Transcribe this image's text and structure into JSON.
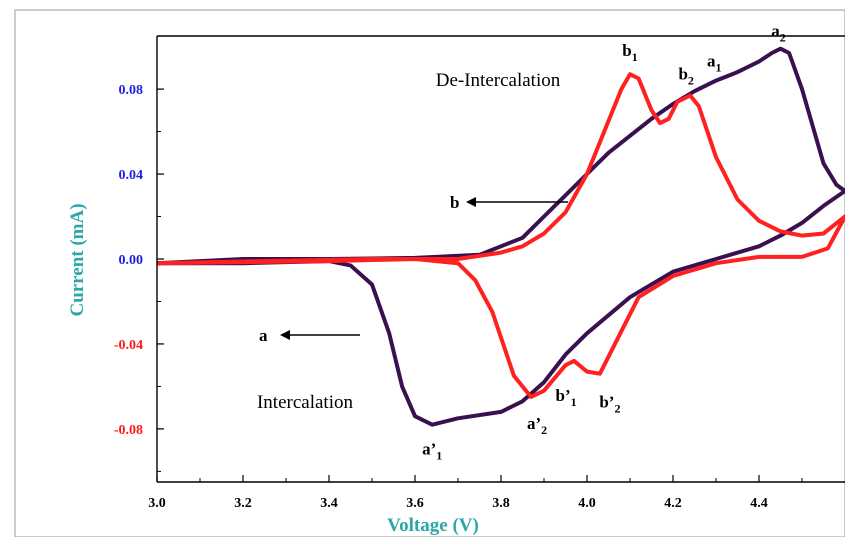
{
  "chart_data": {
    "type": "line",
    "xlabel": "Voltage (V)",
    "ylabel": "Current (mA)",
    "xlim": [
      3.0,
      4.6
    ],
    "ylim": [
      -0.105,
      0.105
    ],
    "x_ticks": [
      "3.0",
      "3.2",
      "3.4",
      "3.6",
      "3.8",
      "4.0",
      "4.2",
      "4.4"
    ],
    "y_ticks": [
      {
        "label": "0.08",
        "value": 0.08,
        "color": "#1f1fe0"
      },
      {
        "label": "0.04",
        "value": 0.04,
        "color": "#1f1fe0"
      },
      {
        "label": "0.00",
        "value": 0.0,
        "color": "#1f1fe0"
      },
      {
        "label": "-0.04",
        "value": -0.04,
        "color": "#ff1a1a"
      },
      {
        "label": "-0.08",
        "value": -0.08,
        "color": "#ff1a1a"
      }
    ],
    "colors": {
      "xlabel": "#2aa8a8",
      "ylabel": "#2aa8a8",
      "series_a": "#3a1150",
      "series_b": "#ff2020"
    },
    "series": [
      {
        "id": "a",
        "anodic": [
          [
            3.0,
            -0.002
          ],
          [
            3.2,
            0.0
          ],
          [
            3.4,
            0.0
          ],
          [
            3.6,
            0.0005
          ],
          [
            3.75,
            0.002
          ],
          [
            3.85,
            0.01
          ],
          [
            3.9,
            0.02
          ],
          [
            3.95,
            0.03
          ],
          [
            4.0,
            0.04
          ],
          [
            4.05,
            0.05
          ],
          [
            4.1,
            0.058
          ],
          [
            4.15,
            0.066
          ],
          [
            4.2,
            0.073
          ],
          [
            4.25,
            0.079
          ],
          [
            4.3,
            0.084
          ],
          [
            4.35,
            0.088
          ],
          [
            4.4,
            0.093
          ],
          [
            4.43,
            0.097
          ],
          [
            4.45,
            0.099
          ],
          [
            4.47,
            0.097
          ],
          [
            4.5,
            0.08
          ],
          [
            4.55,
            0.045
          ],
          [
            4.58,
            0.035
          ],
          [
            4.6,
            0.032
          ]
        ],
        "cathodic": [
          [
            4.6,
            0.032
          ],
          [
            4.55,
            0.025
          ],
          [
            4.5,
            0.017
          ],
          [
            4.45,
            0.011
          ],
          [
            4.4,
            0.006
          ],
          [
            4.3,
            0.0
          ],
          [
            4.2,
            -0.006
          ],
          [
            4.1,
            -0.018
          ],
          [
            4.0,
            -0.035
          ],
          [
            3.95,
            -0.045
          ],
          [
            3.9,
            -0.058
          ],
          [
            3.85,
            -0.067
          ],
          [
            3.8,
            -0.072
          ],
          [
            3.7,
            -0.075
          ],
          [
            3.64,
            -0.078
          ],
          [
            3.6,
            -0.074
          ],
          [
            3.57,
            -0.06
          ],
          [
            3.54,
            -0.035
          ],
          [
            3.5,
            -0.012
          ],
          [
            3.45,
            -0.003
          ],
          [
            3.4,
            -0.001
          ],
          [
            3.2,
            -0.002
          ],
          [
            3.0,
            -0.002
          ]
        ]
      },
      {
        "id": "b",
        "anodic": [
          [
            3.0,
            -0.002
          ],
          [
            3.5,
            0.0
          ],
          [
            3.7,
            0.0
          ],
          [
            3.8,
            0.003
          ],
          [
            3.85,
            0.006
          ],
          [
            3.9,
            0.012
          ],
          [
            3.95,
            0.022
          ],
          [
            4.0,
            0.04
          ],
          [
            4.04,
            0.06
          ],
          [
            4.08,
            0.08
          ],
          [
            4.1,
            0.087
          ],
          [
            4.12,
            0.085
          ],
          [
            4.15,
            0.07
          ],
          [
            4.17,
            0.064
          ],
          [
            4.19,
            0.066
          ],
          [
            4.21,
            0.074
          ],
          [
            4.24,
            0.077
          ],
          [
            4.26,
            0.072
          ],
          [
            4.3,
            0.048
          ],
          [
            4.35,
            0.028
          ],
          [
            4.4,
            0.018
          ],
          [
            4.45,
            0.013
          ],
          [
            4.5,
            0.011
          ],
          [
            4.55,
            0.012
          ],
          [
            4.6,
            0.02
          ]
        ],
        "cathodic": [
          [
            4.6,
            0.02
          ],
          [
            4.56,
            0.005
          ],
          [
            4.5,
            0.001
          ],
          [
            4.4,
            0.001
          ],
          [
            4.3,
            -0.002
          ],
          [
            4.2,
            -0.008
          ],
          [
            4.12,
            -0.018
          ],
          [
            4.07,
            -0.038
          ],
          [
            4.03,
            -0.054
          ],
          [
            4.0,
            -0.053
          ],
          [
            3.97,
            -0.048
          ],
          [
            3.95,
            -0.05
          ],
          [
            3.9,
            -0.062
          ],
          [
            3.87,
            -0.065
          ],
          [
            3.83,
            -0.055
          ],
          [
            3.78,
            -0.025
          ],
          [
            3.74,
            -0.01
          ],
          [
            3.7,
            -0.002
          ],
          [
            3.6,
            0.0
          ],
          [
            3.4,
            -0.001
          ],
          [
            3.0,
            -0.002
          ]
        ]
      }
    ],
    "annotations": {
      "de_intercalation": "De-Intercalation",
      "intercalation": "Intercalation",
      "arrow_b": "b",
      "arrow_a": "a"
    },
    "peak_labels": [
      {
        "id": "b1",
        "main": "b",
        "sub": "1",
        "x": 4.1,
        "y": 0.087
      },
      {
        "id": "b2",
        "main": "b",
        "sub": "2",
        "x": 4.24,
        "y": 0.077
      },
      {
        "id": "a1",
        "main": "a",
        "sub": "1",
        "x": 4.31,
        "y": 0.084
      },
      {
        "id": "a2",
        "main": "a",
        "sub": "2",
        "x": 4.45,
        "y": 0.099
      },
      {
        "id": "a-prime-1",
        "main": "a’",
        "sub": "1",
        "x": 3.64,
        "y": -0.078
      },
      {
        "id": "a-prime-2",
        "main": "a’",
        "sub": "2",
        "x": 3.87,
        "y": -0.065
      },
      {
        "id": "b-prime-1",
        "main": "b’",
        "sub": "1",
        "x": 3.97,
        "y": -0.048
      },
      {
        "id": "b-prime-2",
        "main": "b’",
        "sub": "2",
        "x": 4.03,
        "y": -0.054
      }
    ]
  }
}
